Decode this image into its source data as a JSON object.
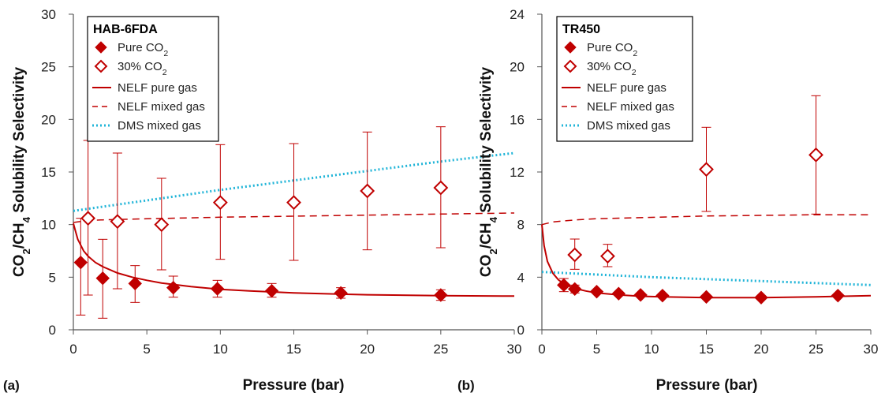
{
  "colors": {
    "pure": "#c00000",
    "mixed": "#c00000",
    "dms": "#22b5d8",
    "axis": "#555555"
  },
  "chart_data": [
    {
      "type": "scatter",
      "panel_label": "(a)",
      "legend_title": "HAB-6FDA",
      "legend": {
        "pure": [
          "Pure CO",
          "2"
        ],
        "mixed": [
          "30% CO",
          "2"
        ],
        "nelf_pure": "NELF pure gas",
        "nelf_mixed": "NELF mixed gas",
        "dms_mixed": "DMS mixed gas"
      },
      "xlabel": "Pressure (bar)",
      "ylabel": [
        "CO",
        "2",
        "/CH",
        "4",
        " Solubility Selectivity"
      ],
      "xlim": [
        0,
        30
      ],
      "ylim": [
        0,
        30
      ],
      "xticks": [
        0,
        5,
        10,
        15,
        20,
        25,
        30
      ],
      "yticks": [
        0,
        5,
        10,
        15,
        20,
        25,
        30
      ],
      "series": [
        {
          "name": "Pure CO2",
          "marker": "diamond-filled",
          "points": [
            [
              0.5,
              6.4,
              1.4,
              10.6
            ],
            [
              2,
              4.9,
              1.1,
              8.6
            ],
            [
              4.2,
              4.4,
              2.6,
              6.1
            ],
            [
              6.8,
              4.0,
              3.1,
              5.1
            ],
            [
              9.8,
              3.9,
              3.1,
              4.7
            ],
            [
              13.5,
              3.7,
              3.1,
              4.4
            ],
            [
              18.2,
              3.5,
              3.0,
              4.0
            ],
            [
              25,
              3.3,
              2.8,
              3.8
            ]
          ]
        },
        {
          "name": "30% CO2",
          "marker": "diamond-open",
          "points": [
            [
              1,
              10.6,
              3.3,
              18.0
            ],
            [
              3,
              10.3,
              3.9,
              16.8
            ],
            [
              6,
              10.0,
              5.7,
              14.4
            ],
            [
              10,
              12.1,
              6.7,
              17.6
            ],
            [
              15,
              12.1,
              6.6,
              17.7
            ],
            [
              20,
              13.2,
              7.6,
              18.8
            ],
            [
              25,
              13.5,
              7.8,
              19.3
            ]
          ]
        }
      ],
      "curves": [
        {
          "name": "NELF pure gas",
          "style": "solid",
          "points": [
            [
              0,
              10.1
            ],
            [
              0.3,
              8.6
            ],
            [
              0.7,
              7.5
            ],
            [
              1,
              7.0
            ],
            [
              1.5,
              6.4
            ],
            [
              2,
              6.0
            ],
            [
              3,
              5.4
            ],
            [
              4,
              5.0
            ],
            [
              5,
              4.7
            ],
            [
              6,
              4.45
            ],
            [
              8,
              4.1
            ],
            [
              10,
              3.85
            ],
            [
              12,
              3.7
            ],
            [
              15,
              3.5
            ],
            [
              18,
              3.4
            ],
            [
              20,
              3.33
            ],
            [
              25,
              3.25
            ],
            [
              30,
              3.2
            ]
          ]
        },
        {
          "name": "NELF mixed gas",
          "style": "dashed",
          "points": [
            [
              0,
              10.2
            ],
            [
              1,
              10.4
            ],
            [
              2,
              10.45
            ],
            [
              5,
              10.55
            ],
            [
              10,
              10.7
            ],
            [
              15,
              10.8
            ],
            [
              20,
              10.9
            ],
            [
              25,
              11.0
            ],
            [
              30,
              11.1
            ]
          ]
        },
        {
          "name": "DMS mixed gas",
          "style": "dotted",
          "points": [
            [
              0,
              11.3
            ],
            [
              5,
              12.3
            ],
            [
              10,
              13.3
            ],
            [
              15,
              14.2
            ],
            [
              20,
              15.1
            ],
            [
              25,
              16.0
            ],
            [
              30,
              16.8
            ]
          ]
        }
      ]
    },
    {
      "type": "scatter",
      "panel_label": "(b)",
      "legend_title": "TR450",
      "legend": {
        "pure": [
          "Pure CO",
          "2"
        ],
        "mixed": [
          "30% CO",
          "2"
        ],
        "nelf_pure": "NELF pure gas",
        "nelf_mixed": "NELF mixed gas",
        "dms_mixed": "DMS mixed gas"
      },
      "xlabel": "Pressure (bar)",
      "ylabel": [
        "CO",
        "2",
        "/CH",
        "4",
        " Solubility Selectivity"
      ],
      "xlim": [
        0,
        30
      ],
      "ylim": [
        0,
        24
      ],
      "xticks": [
        0,
        5,
        10,
        15,
        20,
        25,
        30
      ],
      "yticks": [
        0,
        4,
        8,
        12,
        16,
        20,
        24
      ],
      "series": [
        {
          "name": "Pure CO2",
          "marker": "diamond-filled",
          "points": [
            [
              2,
              3.4,
              2.9,
              3.9
            ],
            [
              3,
              3.1,
              2.8,
              3.4
            ],
            [
              5,
              2.9,
              null,
              null
            ],
            [
              7,
              2.75,
              null,
              null
            ],
            [
              9,
              2.65,
              null,
              null
            ],
            [
              11,
              2.6,
              null,
              null
            ],
            [
              15,
              2.5,
              null,
              null
            ],
            [
              20,
              2.45,
              null,
              null
            ],
            [
              27,
              2.6,
              null,
              null
            ]
          ]
        },
        {
          "name": "30% CO2",
          "marker": "diamond-open",
          "points": [
            [
              3,
              5.7,
              4.6,
              6.9
            ],
            [
              6,
              5.6,
              4.8,
              6.5
            ],
            [
              15,
              12.2,
              9.0,
              15.4
            ],
            [
              25,
              13.3,
              8.8,
              17.8
            ]
          ]
        }
      ],
      "curves": [
        {
          "name": "NELF pure gas",
          "style": "solid",
          "points": [
            [
              0,
              8.0
            ],
            [
              0.2,
              6.4
            ],
            [
              0.5,
              5.2
            ],
            [
              1,
              4.3
            ],
            [
              1.5,
              3.8
            ],
            [
              2,
              3.5
            ],
            [
              3,
              3.15
            ],
            [
              4,
              2.95
            ],
            [
              5,
              2.8
            ],
            [
              7,
              2.65
            ],
            [
              9,
              2.55
            ],
            [
              11,
              2.5
            ],
            [
              13,
              2.47
            ],
            [
              15,
              2.45
            ],
            [
              20,
              2.45
            ],
            [
              25,
              2.5
            ],
            [
              30,
              2.6
            ]
          ]
        },
        {
          "name": "NELF mixed gas",
          "style": "dashed",
          "points": [
            [
              0,
              8.0
            ],
            [
              1,
              8.2
            ],
            [
              3,
              8.35
            ],
            [
              5,
              8.45
            ],
            [
              10,
              8.55
            ],
            [
              15,
              8.65
            ],
            [
              20,
              8.7
            ],
            [
              25,
              8.75
            ],
            [
              30,
              8.75
            ]
          ]
        },
        {
          "name": "DMS mixed gas",
          "style": "dotted",
          "points": [
            [
              0,
              4.4
            ],
            [
              5,
              4.2
            ],
            [
              10,
              4.0
            ],
            [
              15,
              3.85
            ],
            [
              20,
              3.7
            ],
            [
              25,
              3.55
            ],
            [
              30,
              3.4
            ]
          ]
        }
      ]
    }
  ]
}
